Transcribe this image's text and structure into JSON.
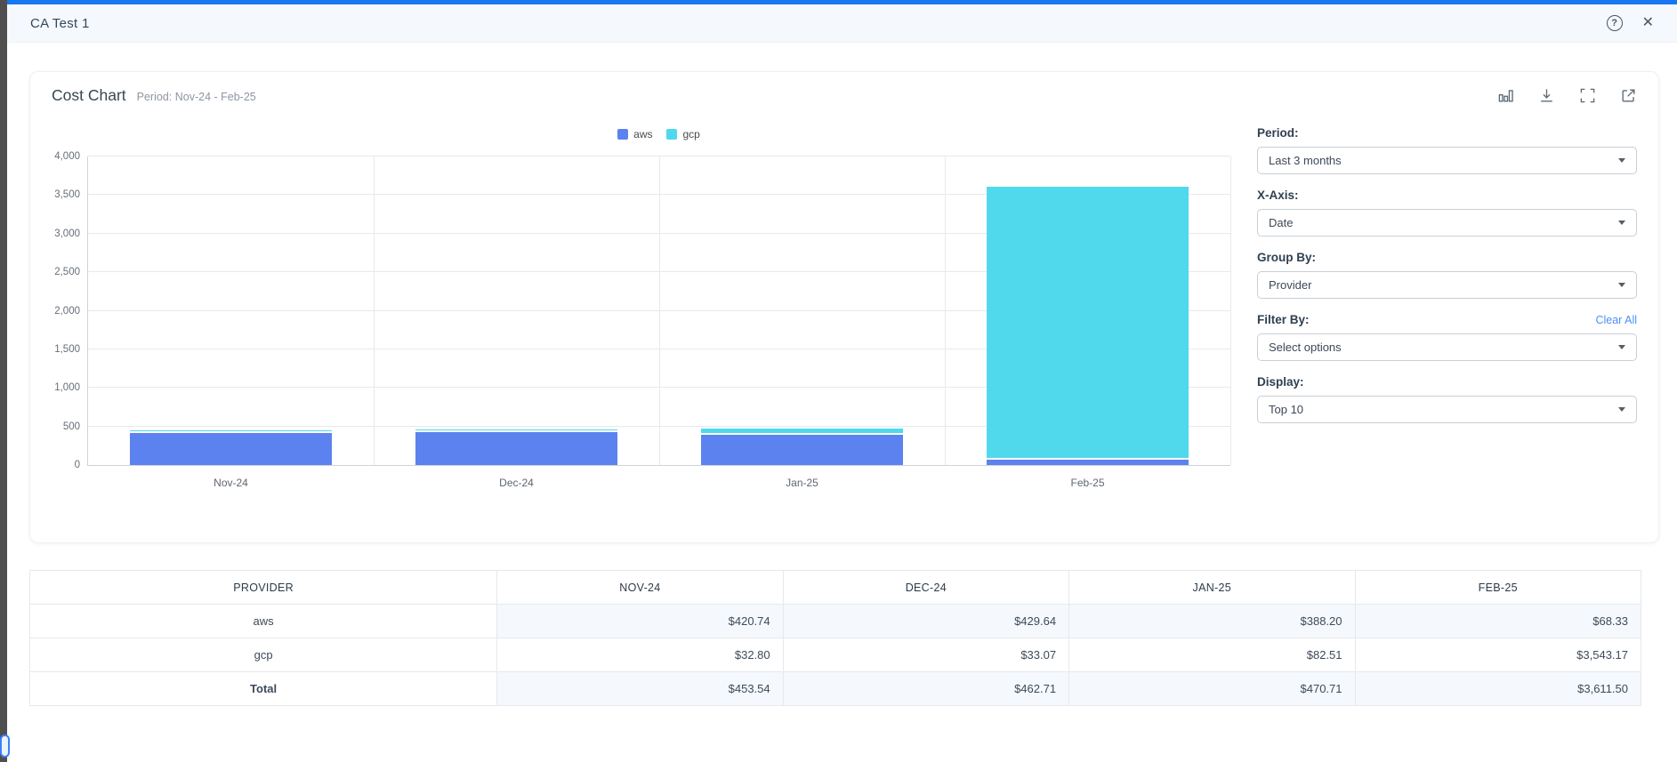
{
  "window": {
    "title": "CA Test 1"
  },
  "card": {
    "title": "Cost Chart",
    "subtitle": "Period: Nov-24 - Feb-25",
    "tool_icons": [
      "bar-chart",
      "download",
      "fullscreen",
      "open-external"
    ]
  },
  "controls": {
    "period": {
      "label": "Period:",
      "value": "Last 3 months"
    },
    "xaxis": {
      "label": "X-Axis:",
      "value": "Date"
    },
    "groupby": {
      "label": "Group By:",
      "value": "Provider"
    },
    "filterby": {
      "label": "Filter By:",
      "value": "Select options",
      "clear_label": "Clear All"
    },
    "display": {
      "label": "Display:",
      "value": "Top 10"
    }
  },
  "chart_data": {
    "type": "bar",
    "stacked": true,
    "categories": [
      "Nov-24",
      "Dec-24",
      "Jan-25",
      "Feb-25"
    ],
    "series": [
      {
        "name": "aws",
        "color": "#5b82ee",
        "values": [
          420.74,
          429.64,
          388.2,
          68.33
        ]
      },
      {
        "name": "gcp",
        "color": "#50d9ec",
        "values": [
          32.8,
          33.07,
          82.51,
          3543.17
        ]
      }
    ],
    "title": "Cost Chart",
    "xlabel": "",
    "ylabel": "",
    "ylim": [
      0,
      4000
    ],
    "ytick_step": 500,
    "legend_position": "top-center",
    "grid": true
  },
  "table": {
    "headers": [
      "PROVIDER",
      "NOV-24",
      "DEC-24",
      "JAN-25",
      "FEB-25"
    ],
    "rows": [
      {
        "label": "aws",
        "values": [
          "$420.74",
          "$429.64",
          "$388.20",
          "$68.33"
        ]
      },
      {
        "label": "gcp",
        "values": [
          "$32.80",
          "$33.07",
          "$82.51",
          "$3,543.17"
        ]
      },
      {
        "label": "Total",
        "values": [
          "$453.54",
          "$462.71",
          "$470.71",
          "$3,611.50"
        ],
        "is_total": true
      }
    ]
  },
  "colors": {
    "accent_bar": "#1677f0",
    "aws": "#5b82ee",
    "gcp": "#50d9ec",
    "link": "#4a90f4",
    "stripe": "#f5f9fd"
  }
}
